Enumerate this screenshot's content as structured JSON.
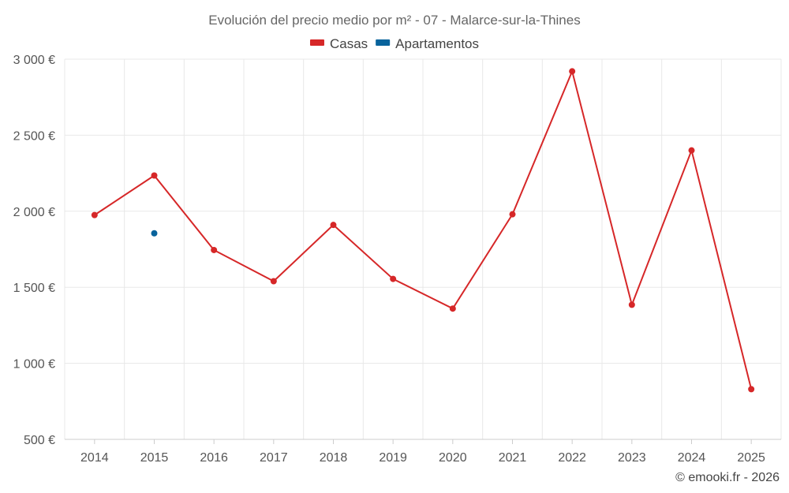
{
  "chart_data": {
    "type": "line",
    "title": "Evolución del precio medio por m² - 07 - Malarce-sur-la-Thines",
    "categories": [
      "2014",
      "2015",
      "2016",
      "2017",
      "2018",
      "2019",
      "2020",
      "2021",
      "2022",
      "2023",
      "2024",
      "2025"
    ],
    "series": [
      {
        "name": "Casas",
        "color": "#d62728",
        "values": [
          1975,
          2235,
          1745,
          1540,
          1910,
          1555,
          1360,
          1980,
          2920,
          1385,
          2400,
          830
        ]
      },
      {
        "name": "Apartamentos",
        "color": "#08639c",
        "values": [
          null,
          1855,
          null,
          null,
          null,
          null,
          null,
          null,
          null,
          null,
          null,
          null
        ]
      }
    ],
    "ylim": [
      500,
      3000
    ],
    "yticks": [
      500,
      1000,
      1500,
      2000,
      2500,
      3000
    ],
    "ytick_labels": [
      "500 €",
      "1 000 €",
      "1 500 €",
      "2 000 €",
      "2 500 €",
      "3 000 €"
    ],
    "grid": true,
    "legend_position": "top-center",
    "xlabel": "",
    "ylabel": ""
  },
  "credit": "© emooki.fr - 2026"
}
